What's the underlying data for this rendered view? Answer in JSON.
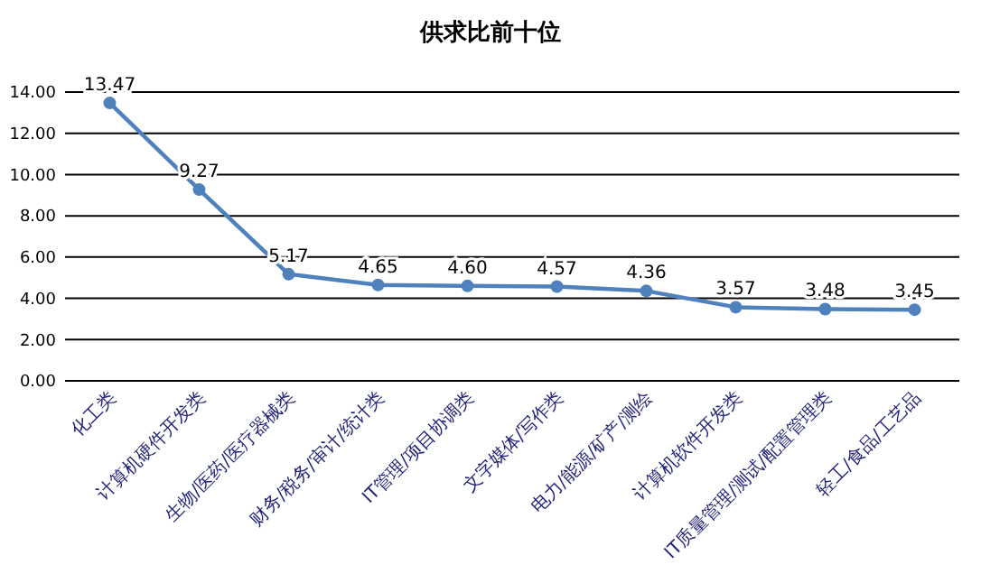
{
  "chart_data": {
    "type": "line",
    "title": "供求比前十位",
    "categories": [
      "化工类",
      "计算机硬件开发类",
      "生物/医药/医疗器械类",
      "财务/税务/审计/统计类",
      "IT管理/项目协调类",
      "文字媒体/写作类",
      "电力/能源/矿产/测绘",
      "计算机软件开发类",
      "IT质量管理/测试/配置管理类",
      "轻工/食品/工艺品"
    ],
    "series": [
      {
        "color": "#4f81bd",
        "values": [
          13.47,
          9.27,
          5.17,
          4.65,
          4.6,
          4.57,
          4.36,
          3.57,
          3.48,
          3.45
        ]
      }
    ],
    "value_labels": [
      "13.47",
      "9.27",
      "5.17",
      "4.65",
      "4.60",
      "4.57",
      "4.36",
      "3.57",
      "3.48",
      "3.45"
    ],
    "ylim": [
      0,
      14
    ],
    "yticks": [
      {
        "value": 0,
        "label": "0.00"
      },
      {
        "value": 2,
        "label": "2.00"
      },
      {
        "value": 4,
        "label": "4.00"
      },
      {
        "value": 6,
        "label": "6.00"
      },
      {
        "value": 8,
        "label": "8.00"
      },
      {
        "value": 10,
        "label": "10.00"
      },
      {
        "value": 12,
        "label": "12.00"
      },
      {
        "value": 14,
        "label": "14.00"
      }
    ],
    "grid": "y",
    "marker": "circle",
    "line_style": "solid"
  }
}
